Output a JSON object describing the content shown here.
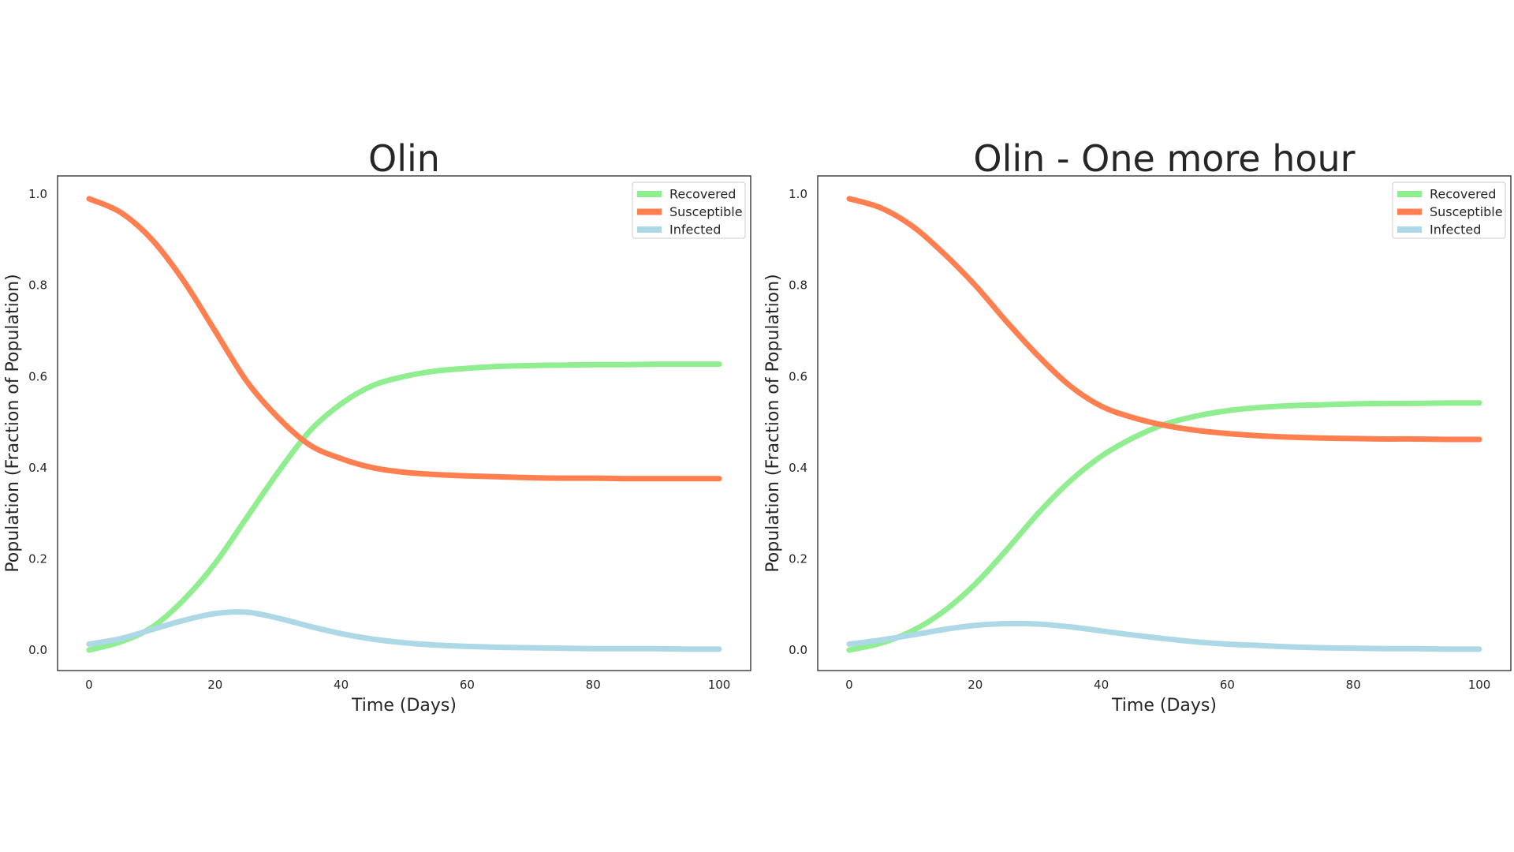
{
  "chart_data": [
    {
      "type": "line",
      "title": "Olin",
      "xlabel": "Time (Days)",
      "ylabel": "Population (Fraction of Population)",
      "xlim": [
        -5,
        105
      ],
      "ylim": [
        -0.045,
        1.04
      ],
      "xticks": [
        0,
        20,
        40,
        60,
        80,
        100
      ],
      "yticks": [
        0.0,
        0.2,
        0.4,
        0.6,
        0.8,
        1.0
      ],
      "grid": false,
      "legend_position": "top-right",
      "series": [
        {
          "name": "Recovered",
          "color": "#90ee90",
          "x": [
            0,
            5,
            10,
            15,
            20,
            25,
            30,
            35,
            40,
            45,
            50,
            55,
            60,
            65,
            70,
            75,
            80,
            85,
            90,
            95,
            100
          ],
          "y": [
            0.0,
            0.018,
            0.05,
            0.11,
            0.19,
            0.29,
            0.39,
            0.48,
            0.54,
            0.58,
            0.6,
            0.612,
            0.618,
            0.622,
            0.624,
            0.625,
            0.626,
            0.626,
            0.627,
            0.627,
            0.627
          ]
        },
        {
          "name": "Susceptible",
          "color": "#ff7f50",
          "x": [
            0,
            5,
            10,
            15,
            20,
            25,
            30,
            35,
            40,
            45,
            50,
            55,
            60,
            65,
            70,
            75,
            80,
            85,
            90,
            95,
            100
          ],
          "y": [
            0.99,
            0.96,
            0.9,
            0.81,
            0.7,
            0.59,
            0.51,
            0.45,
            0.42,
            0.4,
            0.39,
            0.385,
            0.382,
            0.38,
            0.378,
            0.377,
            0.377,
            0.376,
            0.376,
            0.376,
            0.376
          ]
        },
        {
          "name": "Infected",
          "color": "#add8e6",
          "x": [
            0,
            5,
            10,
            15,
            20,
            25,
            30,
            35,
            40,
            45,
            50,
            55,
            60,
            65,
            70,
            75,
            80,
            85,
            90,
            95,
            100
          ],
          "y": [
            0.013,
            0.025,
            0.045,
            0.065,
            0.08,
            0.083,
            0.07,
            0.052,
            0.036,
            0.024,
            0.016,
            0.011,
            0.008,
            0.006,
            0.005,
            0.004,
            0.003,
            0.003,
            0.003,
            0.002,
            0.002
          ]
        }
      ]
    },
    {
      "type": "line",
      "title": "Olin - One more hour",
      "xlabel": "Time (Days)",
      "ylabel": "Population (Fraction of Population)",
      "xlim": [
        -5,
        105
      ],
      "ylim": [
        -0.045,
        1.04
      ],
      "xticks": [
        0,
        20,
        40,
        60,
        80,
        100
      ],
      "yticks": [
        0.0,
        0.2,
        0.4,
        0.6,
        0.8,
        1.0
      ],
      "grid": false,
      "legend_position": "top-right",
      "series": [
        {
          "name": "Recovered",
          "color": "#90ee90",
          "x": [
            0,
            5,
            10,
            15,
            20,
            25,
            30,
            35,
            40,
            45,
            50,
            55,
            60,
            65,
            70,
            75,
            80,
            85,
            90,
            95,
            100
          ],
          "y": [
            0.0,
            0.015,
            0.042,
            0.085,
            0.145,
            0.22,
            0.3,
            0.37,
            0.425,
            0.465,
            0.495,
            0.513,
            0.525,
            0.532,
            0.536,
            0.538,
            0.54,
            0.541,
            0.541,
            0.542,
            0.542
          ]
        },
        {
          "name": "Susceptible",
          "color": "#ff7f50",
          "x": [
            0,
            5,
            10,
            15,
            20,
            25,
            30,
            35,
            40,
            45,
            50,
            55,
            60,
            65,
            70,
            75,
            80,
            85,
            90,
            95,
            100
          ],
          "y": [
            0.99,
            0.97,
            0.93,
            0.87,
            0.8,
            0.72,
            0.645,
            0.58,
            0.535,
            0.51,
            0.493,
            0.482,
            0.475,
            0.47,
            0.467,
            0.465,
            0.464,
            0.463,
            0.463,
            0.462,
            0.462
          ]
        },
        {
          "name": "Infected",
          "color": "#add8e6",
          "x": [
            0,
            5,
            10,
            15,
            20,
            25,
            30,
            35,
            40,
            45,
            50,
            55,
            60,
            65,
            70,
            75,
            80,
            85,
            90,
            95,
            100
          ],
          "y": [
            0.013,
            0.022,
            0.033,
            0.045,
            0.054,
            0.058,
            0.057,
            0.051,
            0.042,
            0.033,
            0.025,
            0.018,
            0.013,
            0.01,
            0.007,
            0.005,
            0.004,
            0.003,
            0.003,
            0.002,
            0.002
          ]
        }
      ]
    }
  ]
}
